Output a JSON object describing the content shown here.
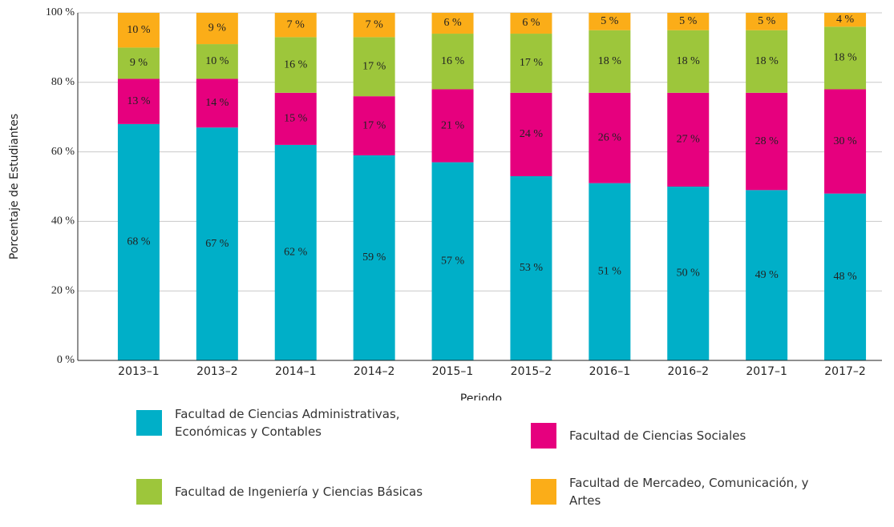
{
  "chart_data": {
    "type": "stacked_bar",
    "x_label": "Periodo",
    "y_label": "Porcentaje de Estudiantes",
    "categories": [
      "2013–1",
      "2013–2",
      "2014–1",
      "2014–2",
      "2015–1",
      "2015–2",
      "2016–1",
      "2016–2",
      "2017–1",
      "2017–2"
    ],
    "series": [
      {
        "name": "Facultad de Ciencias Administrativas, Económicas y Contables",
        "color": "#00afc8",
        "values": [
          68,
          67,
          62,
          59,
          57,
          53,
          51,
          50,
          49,
          48
        ],
        "value_labels": [
          "68 %",
          "67 %",
          "62 %",
          "59 %",
          "57 %",
          "53 %",
          "51 %",
          "50 %",
          "49 %",
          "48 %"
        ]
      },
      {
        "name": "Facultad de Ciencias Sociales",
        "color": "#e6007e",
        "values": [
          13,
          14,
          15,
          17,
          21,
          24,
          26,
          27,
          28,
          30
        ],
        "value_labels": [
          "13 %",
          "14 %",
          "15 %",
          "17 %",
          "21 %",
          "24 %",
          "26 %",
          "27 %",
          "28 %",
          "30 %"
        ]
      },
      {
        "name": "Facultad de Ingeniería y Ciencias Básicas",
        "color": "#9dc63b",
        "values": [
          9,
          10,
          16,
          17,
          16,
          17,
          18,
          18,
          18,
          18
        ],
        "value_labels": [
          "9 %",
          "10 %",
          "16 %",
          "17 %",
          "16 %",
          "17 %",
          "18 %",
          "18 %",
          "18 %",
          "18 %"
        ]
      },
      {
        "name": "Facultad de Mercadeo, Comunicación, y Artes",
        "color": "#fbad18",
        "values": [
          10,
          9,
          7,
          7,
          6,
          6,
          5,
          5,
          5,
          4
        ],
        "value_labels": [
          "10 %",
          "9 %",
          "7 %",
          "7 %",
          "6 %",
          "6 %",
          "5 %",
          "5 %",
          "5 %",
          "4 %"
        ]
      }
    ],
    "ylim": [
      0,
      100
    ],
    "yticks": [
      {
        "value": 0,
        "label": "0 %"
      },
      {
        "value": 20,
        "label": "20 %"
      },
      {
        "value": 40,
        "label": "40 %"
      },
      {
        "value": 60,
        "label": "60 %"
      },
      {
        "value": 80,
        "label": "80 %"
      },
      {
        "value": 100,
        "label": "100 %"
      }
    ],
    "grid": true
  }
}
